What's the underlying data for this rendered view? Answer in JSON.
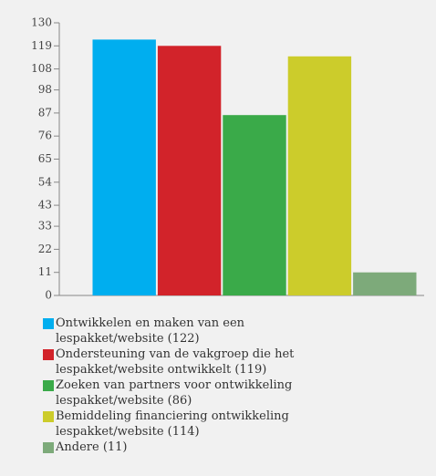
{
  "chart_data": {
    "type": "bar",
    "categories": [
      "Ontwikkelen en maken van een lespakket/website (122)",
      "Ondersteuning van de vakgroep die het lespakket/website ontwikkelt (119)",
      "Zoeken van partners voor ontwikkeling lespakket/website (86)",
      "Bemiddeling financiering ontwikkeling lespakket/website (114)",
      "Andere (11)"
    ],
    "values": [
      122,
      119,
      86,
      114,
      11
    ],
    "colors": [
      "#00aeef",
      "#d2232a",
      "#3aaa49",
      "#cccc2b",
      "#7daa7a"
    ],
    "ylim": [
      0,
      130
    ],
    "yticks": [
      0,
      11,
      22,
      33,
      43,
      54,
      65,
      76,
      87,
      98,
      108,
      119,
      130
    ],
    "grid": false
  }
}
